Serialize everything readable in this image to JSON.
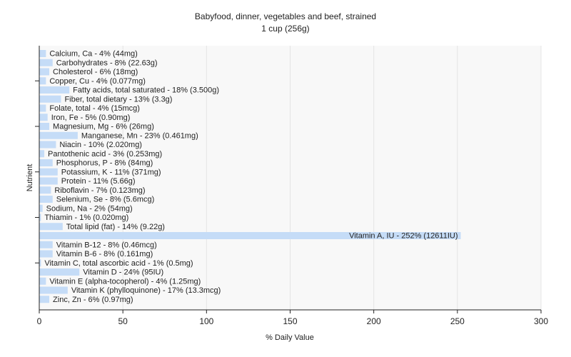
{
  "chart_data": {
    "type": "bar",
    "orientation": "horizontal",
    "title": "Babyfood, dinner, vegetables and beef, strained",
    "subtitle": "1 cup (256g)",
    "xlabel": "% Daily Value",
    "ylabel": "Nutrient",
    "xlim": [
      0,
      300
    ],
    "xticks": [
      0,
      50,
      100,
      150,
      200,
      250,
      300
    ],
    "grid": true,
    "bar_color": "#c5dcf7",
    "plot_background": "#f8f8f8",
    "categories": [
      "Calcium, Ca",
      "Carbohydrates",
      "Cholesterol",
      "Copper, Cu",
      "Fatty acids, total saturated",
      "Fiber, total dietary",
      "Folate, total",
      "Iron, Fe",
      "Magnesium, Mg",
      "Manganese, Mn",
      "Niacin",
      "Pantothenic acid",
      "Phosphorus, P",
      "Potassium, K",
      "Protein",
      "Riboflavin",
      "Selenium, Se",
      "Sodium, Na",
      "Thiamin",
      "Total lipid (fat)",
      "Vitamin A, IU",
      "Vitamin B-12",
      "Vitamin B-6",
      "Vitamin C, total ascorbic acid",
      "Vitamin D",
      "Vitamin E (alpha-tocopherol)",
      "Vitamin K (phylloquinone)",
      "Zinc, Zn"
    ],
    "values": [
      4,
      8,
      6,
      4,
      18,
      13,
      4,
      5,
      6,
      23,
      10,
      3,
      8,
      11,
      11,
      7,
      8,
      2,
      1,
      14,
      252,
      8,
      8,
      1,
      24,
      4,
      17,
      6
    ],
    "labels": [
      "Calcium, Ca - 4% (44mg)",
      "Carbohydrates - 8% (22.63g)",
      "Cholesterol - 6% (18mg)",
      "Copper, Cu - 4% (0.077mg)",
      "Fatty acids, total saturated - 18% (3.500g)",
      "Fiber, total dietary - 13% (3.3g)",
      "Folate, total - 4% (15mcg)",
      "Iron, Fe - 5% (0.90mg)",
      "Magnesium, Mg - 6% (26mg)",
      "Manganese, Mn - 23% (0.461mg)",
      "Niacin - 10% (2.020mg)",
      "Pantothenic acid - 3% (0.253mg)",
      "Phosphorus, P - 8% (84mg)",
      "Potassium, K - 11% (371mg)",
      "Protein - 11% (5.66g)",
      "Riboflavin - 7% (0.123mg)",
      "Selenium, Se - 8% (5.6mcg)",
      "Sodium, Na - 2% (54mg)",
      "Thiamin - 1% (0.020mg)",
      "Total lipid (fat) - 14% (9.22g)",
      "Vitamin A, IU - 252% (12611IU)",
      "Vitamin B-12 - 8% (0.46mcg)",
      "Vitamin B-6 - 8% (0.161mg)",
      "Vitamin C, total ascorbic acid - 1% (0.5mg)",
      "Vitamin D - 24% (95IU)",
      "Vitamin E (alpha-tocopherol) - 4% (1.25mg)",
      "Vitamin K (phylloquinone) - 17% (13.3mcg)",
      "Zinc, Zn - 6% (0.97mg)"
    ]
  }
}
